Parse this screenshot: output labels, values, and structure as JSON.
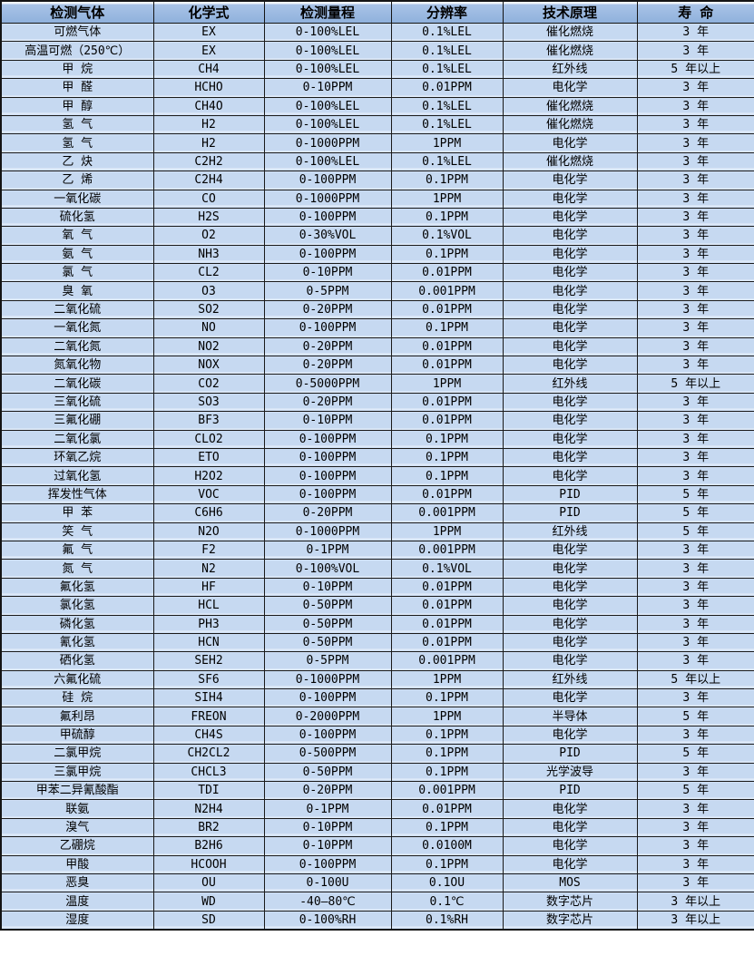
{
  "colors": {
    "header_bg_top": "#a9c3e7",
    "header_bg_bottom": "#8fb1dc",
    "row_bg": "#c6d9f1",
    "grid_line": "#1a1a1a",
    "text": "#000000"
  },
  "table": {
    "headers": [
      "检测气体",
      "化学式",
      "检测量程",
      "分辨率",
      "技术原理",
      "寿  命"
    ],
    "rows": [
      [
        "可燃气体",
        "EX",
        "0-100%LEL",
        "0.1%LEL",
        "催化燃烧",
        "3 年"
      ],
      [
        "高温可燃（250℃）",
        "EX",
        "0-100%LEL",
        "0.1%LEL",
        "催化燃烧",
        "3 年"
      ],
      [
        "甲 烷",
        "CH4",
        "0-100%LEL",
        "0.1%LEL",
        "红外线",
        "5 年以上"
      ],
      [
        "甲 醛",
        "HCHO",
        "0-10PPM",
        "0.01PPM",
        "电化学",
        "3 年"
      ],
      [
        "甲 醇",
        "CH4O",
        "0-100%LEL",
        "0.1%LEL",
        "催化燃烧",
        "3 年"
      ],
      [
        "氢 气",
        "H2",
        "0-100%LEL",
        "0.1%LEL",
        "催化燃烧",
        "3 年"
      ],
      [
        "氢 气",
        "H2",
        "0-1000PPM",
        "1PPM",
        "电化学",
        "3 年"
      ],
      [
        "乙 炔",
        "C2H2",
        "0-100%LEL",
        "0.1%LEL",
        "催化燃烧",
        "3 年"
      ],
      [
        "乙 烯",
        "C2H4",
        "0-100PPM",
        "0.1PPM",
        "电化学",
        "3 年"
      ],
      [
        "一氧化碳",
        "CO",
        "0-1000PPM",
        "1PPM",
        "电化学",
        "3 年"
      ],
      [
        "硫化氢",
        "H2S",
        "0-100PPM",
        "0.1PPM",
        "电化学",
        "3 年"
      ],
      [
        "氧 气",
        "O2",
        "0-30%VOL",
        "0.1%VOL",
        "电化学",
        "3 年"
      ],
      [
        "氨 气",
        "NH3",
        "0-100PPM",
        "0.1PPM",
        "电化学",
        "3 年"
      ],
      [
        "氯 气",
        "CL2",
        "0-10PPM",
        "0.01PPM",
        "电化学",
        "3 年"
      ],
      [
        "臭 氧",
        "O3",
        "0-5PPM",
        "0.001PPM",
        "电化学",
        "3 年"
      ],
      [
        "二氧化硫",
        "SO2",
        "0-20PPM",
        "0.01PPM",
        "电化学",
        "3 年"
      ],
      [
        "一氧化氮",
        "NO",
        "0-100PPM",
        "0.1PPM",
        "电化学",
        "3 年"
      ],
      [
        "二氧化氮",
        "NO2",
        "0-20PPM",
        "0.01PPM",
        "电化学",
        "3 年"
      ],
      [
        "氮氧化物",
        "NOX",
        "0-20PPM",
        "0.01PPM",
        "电化学",
        "3 年"
      ],
      [
        "二氧化碳",
        "CO2",
        "0-5000PPM",
        "1PPM",
        "红外线",
        "5 年以上"
      ],
      [
        "三氧化硫",
        "SO3",
        "0-20PPM",
        "0.01PPM",
        "电化学",
        "3 年"
      ],
      [
        "三氟化硼",
        "BF3",
        "0-10PPM",
        "0.01PPM",
        "电化学",
        "3 年"
      ],
      [
        "二氧化氯",
        "CLO2",
        "0-100PPM",
        "0.1PPM",
        "电化学",
        "3 年"
      ],
      [
        "环氧乙烷",
        "ETO",
        "0-100PPM",
        "0.1PPM",
        "电化学",
        "3 年"
      ],
      [
        "过氧化氢",
        "H2O2",
        "0-100PPM",
        "0.1PPM",
        "电化学",
        "3 年"
      ],
      [
        "挥发性气体",
        "VOC",
        "0-100PPM",
        "0.01PPM",
        "PID",
        "5 年"
      ],
      [
        "甲 苯",
        "C6H6",
        "0-20PPM",
        "0.001PPM",
        "PID",
        "5 年"
      ],
      [
        "笑 气",
        "N2O",
        "0-1000PPM",
        "1PPM",
        "红外线",
        "5 年"
      ],
      [
        "氟 气",
        "F2",
        "0-1PPM",
        "0.001PPM",
        "电化学",
        "3 年"
      ],
      [
        "氮 气",
        "N2",
        "0-100%VOL",
        "0.1%VOL",
        "电化学",
        "3 年"
      ],
      [
        "氟化氢",
        "HF",
        "0-10PPM",
        "0.01PPM",
        "电化学",
        "3 年"
      ],
      [
        "氯化氢",
        "HCL",
        "0-50PPM",
        "0.01PPM",
        "电化学",
        "3 年"
      ],
      [
        "磷化氢",
        "PH3",
        "0-50PPM",
        "0.01PPM",
        "电化学",
        "3 年"
      ],
      [
        "氰化氢",
        "HCN",
        "0-50PPM",
        "0.01PPM",
        "电化学",
        "3 年"
      ],
      [
        "硒化氢",
        "SEH2",
        "0-5PPM",
        "0.001PPM",
        "电化学",
        "3 年"
      ],
      [
        "六氟化硫",
        "SF6",
        "0-1000PPM",
        "1PPM",
        "红外线",
        "5 年以上"
      ],
      [
        "硅 烷",
        "SIH4",
        "0-100PPM",
        "0.1PPM",
        "电化学",
        "3 年"
      ],
      [
        "氟利昂",
        "FREON",
        "0-2000PPM",
        "1PPM",
        "半导体",
        "5 年"
      ],
      [
        "甲硫醇",
        "CH4S",
        "0-100PPM",
        "0.1PPM",
        "电化学",
        "3 年"
      ],
      [
        "二氯甲烷",
        "CH2CL2",
        "0-500PPM",
        "0.1PPM",
        "PID",
        "5 年"
      ],
      [
        "三氯甲烷",
        "CHCL3",
        "0-50PPM",
        "0.1PPM",
        "光学波导",
        "3 年"
      ],
      [
        "甲苯二异氰酸酯",
        "TDI",
        "0-20PPM",
        "0.001PPM",
        "PID",
        "5 年"
      ],
      [
        "联氨",
        "N2H4",
        "0-1PPM",
        "0.01PPM",
        "电化学",
        "3 年"
      ],
      [
        "溴气",
        "BR2",
        "0-10PPM",
        "0.1PPM",
        "电化学",
        "3 年"
      ],
      [
        "乙硼烷",
        "B2H6",
        "0-10PPM",
        "0.0100M",
        "电化学",
        "3 年"
      ],
      [
        "甲酸",
        "HCOOH",
        "0-100PPM",
        "0.1PPM",
        "电化学",
        "3 年"
      ],
      [
        "恶臭",
        "OU",
        "0-100U",
        "0.1OU",
        "MOS",
        "3 年"
      ],
      [
        "温度",
        "WD",
        "-40—80℃",
        "0.1℃",
        "数字芯片",
        "3 年以上"
      ],
      [
        "湿度",
        "SD",
        "0-100%RH",
        "0.1%RH",
        "数字芯片",
        "3 年以上"
      ]
    ]
  }
}
